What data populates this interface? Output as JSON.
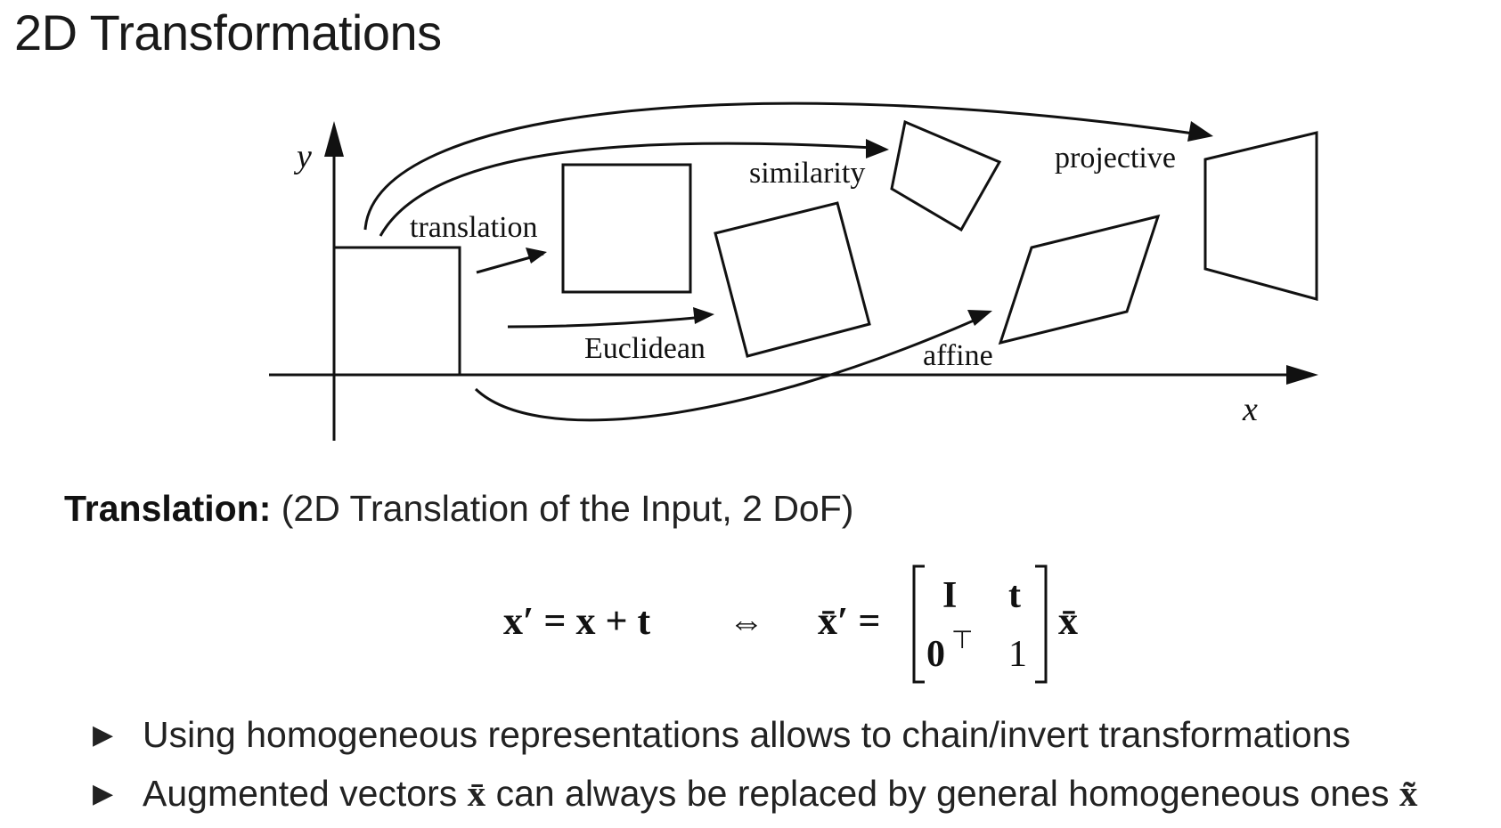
{
  "slide": {
    "title": "2D Transformations",
    "subtitle_bold": "Translation:",
    "subtitle_rest": "(2D Translation of the Input, 2 DoF)"
  },
  "diagram": {
    "axis_x": "x",
    "axis_y": "y",
    "labels": {
      "translation": "translation",
      "euclidean": "Euclidean",
      "similarity": "similarity",
      "affine": "affine",
      "projective": "projective"
    }
  },
  "formula": {
    "lhs": "x′ = x + t",
    "equiv": "⇔",
    "rhs_lhs": "x̄′ =",
    "m11": "I",
    "m12": "t",
    "m21": "0",
    "m21_sup": "⊤",
    "m22": "1",
    "rhs_vec": "x̄"
  },
  "bullets": [
    {
      "text": "Using homogeneous representations allows to chain/invert transformations"
    },
    {
      "text": "Augmented vectors",
      "symbol": "x̄",
      "text2": "can always be replaced by general homogeneous ones",
      "symbol2": "x̃"
    }
  ]
}
